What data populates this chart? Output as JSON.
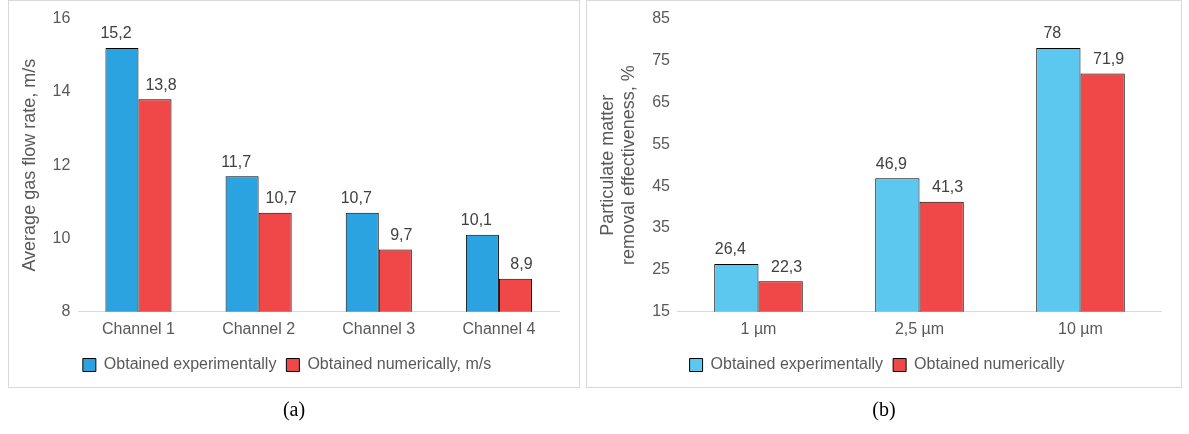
{
  "chart_data": [
    {
      "type": "bar",
      "ylabel": "Average gas flow rate, m/s",
      "categories": [
        "Channel 1",
        "Channel 2",
        "Channel 3",
        "Channel 4"
      ],
      "series": [
        {
          "name": "Obtained experimentally",
          "color": "#2aa3e0",
          "values": [
            15.2,
            11.7,
            10.7,
            10.1
          ],
          "value_labels": [
            "15,2",
            "11,7",
            "10,7",
            "10,1"
          ]
        },
        {
          "name": "Obtained numerically, m/s",
          "color": "#f04848",
          "values": [
            13.8,
            10.7,
            9.7,
            8.9
          ],
          "value_labels": [
            "13,8",
            "10,7",
            "9,7",
            "8,9"
          ]
        }
      ],
      "ylim": [
        8,
        16
      ],
      "yticks": [
        8,
        10,
        12,
        14,
        16
      ],
      "grid": false,
      "legend": "bottom",
      "annotations": [
        "(a)"
      ]
    },
    {
      "type": "bar",
      "ylabel": "Particulate matter removal effectiveness, %",
      "categories": [
        "1 µm",
        "2,5 µm",
        "10 µm"
      ],
      "series": [
        {
          "name": "Obtained experimentally",
          "color": "#5cc8f0",
          "values": [
            26.4,
            46.9,
            78
          ],
          "value_labels": [
            "26,4",
            "46,9",
            "78"
          ]
        },
        {
          "name": "Obtained numerically",
          "color": "#f04848",
          "values": [
            22.3,
            41.3,
            71.9
          ],
          "value_labels": [
            "22,3",
            "41,3",
            "71,9"
          ]
        }
      ],
      "ylim": [
        15,
        85
      ],
      "yticks": [
        15,
        25,
        35,
        45,
        55,
        65,
        75,
        85
      ],
      "grid": false,
      "legend": "bottom",
      "annotations": [
        "(b)"
      ]
    }
  ]
}
